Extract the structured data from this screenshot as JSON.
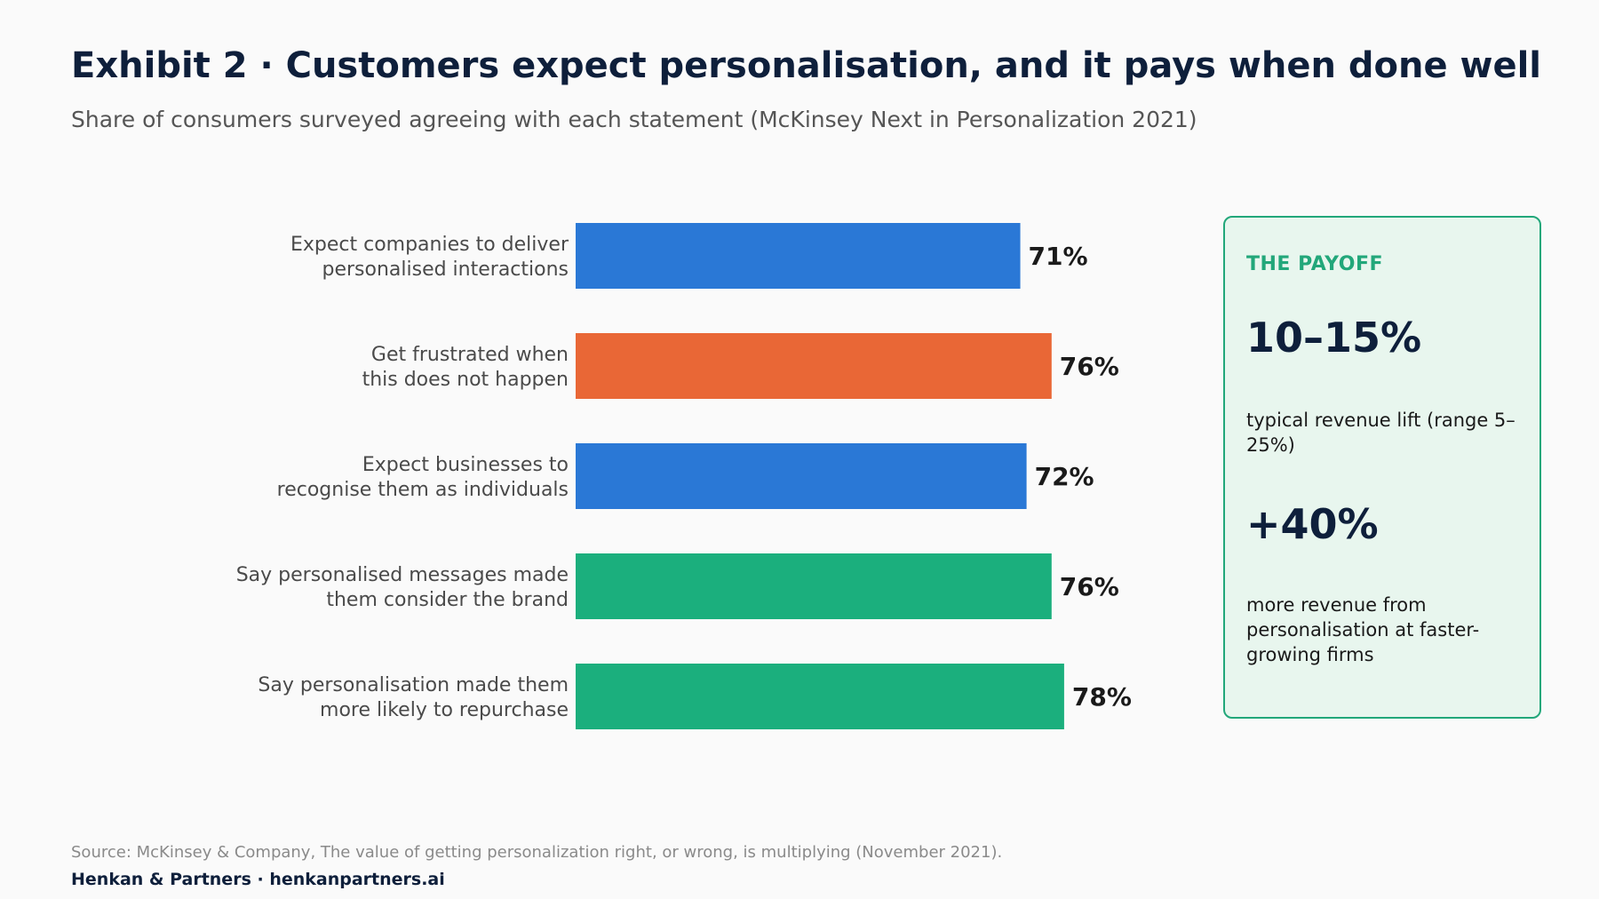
{
  "header": {
    "title": "Exhibit 2 · Customers expect personalisation, and it pays when done well",
    "subtitle": "Share of consumers surveyed agreeing with each statement (McKinsey Next in Personalization 2021)"
  },
  "chart_data": {
    "type": "bar",
    "orientation": "horizontal",
    "title": "Exhibit 2 · Customers expect personalisation, and it pays when done well",
    "subtitle": "Share of consumers surveyed agreeing with each statement (McKinsey Next in Personalization 2021)",
    "xlabel": "",
    "ylabel": "",
    "grid": false,
    "categories": [
      [
        "Expect companies to deliver",
        "personalised interactions"
      ],
      [
        "Get frustrated when",
        "this does not happen"
      ],
      [
        "Expect businesses to",
        "recognise them as individuals"
      ],
      [
        "Say personalised messages made",
        "them consider the brand"
      ],
      [
        "Say personalisation made them",
        "more likely to repurchase"
      ]
    ],
    "values": [
      71,
      76,
      72,
      76,
      78
    ],
    "value_labels": [
      "71%",
      "76%",
      "72%",
      "76%",
      "78%"
    ],
    "unit": "%",
    "xlim": [
      0,
      100
    ],
    "colors": [
      "#2A78D6",
      "#E96736",
      "#2A78D6",
      "#1BAF7D",
      "#1BAF7D"
    ]
  },
  "payoff": {
    "heading": "THE PAYOFF",
    "stat1": "10–15%",
    "stat1_text": "typical revenue lift (range 5–25%)",
    "stat2": "+40%",
    "stat2_text": "more revenue from personalisation at faster-growing firms"
  },
  "source": "Source: McKinsey & Company, The value of getting personalization right, or wrong, is multiplying (November 2021).",
  "footer": "Henkan & Partners · henkanpartners.ai"
}
